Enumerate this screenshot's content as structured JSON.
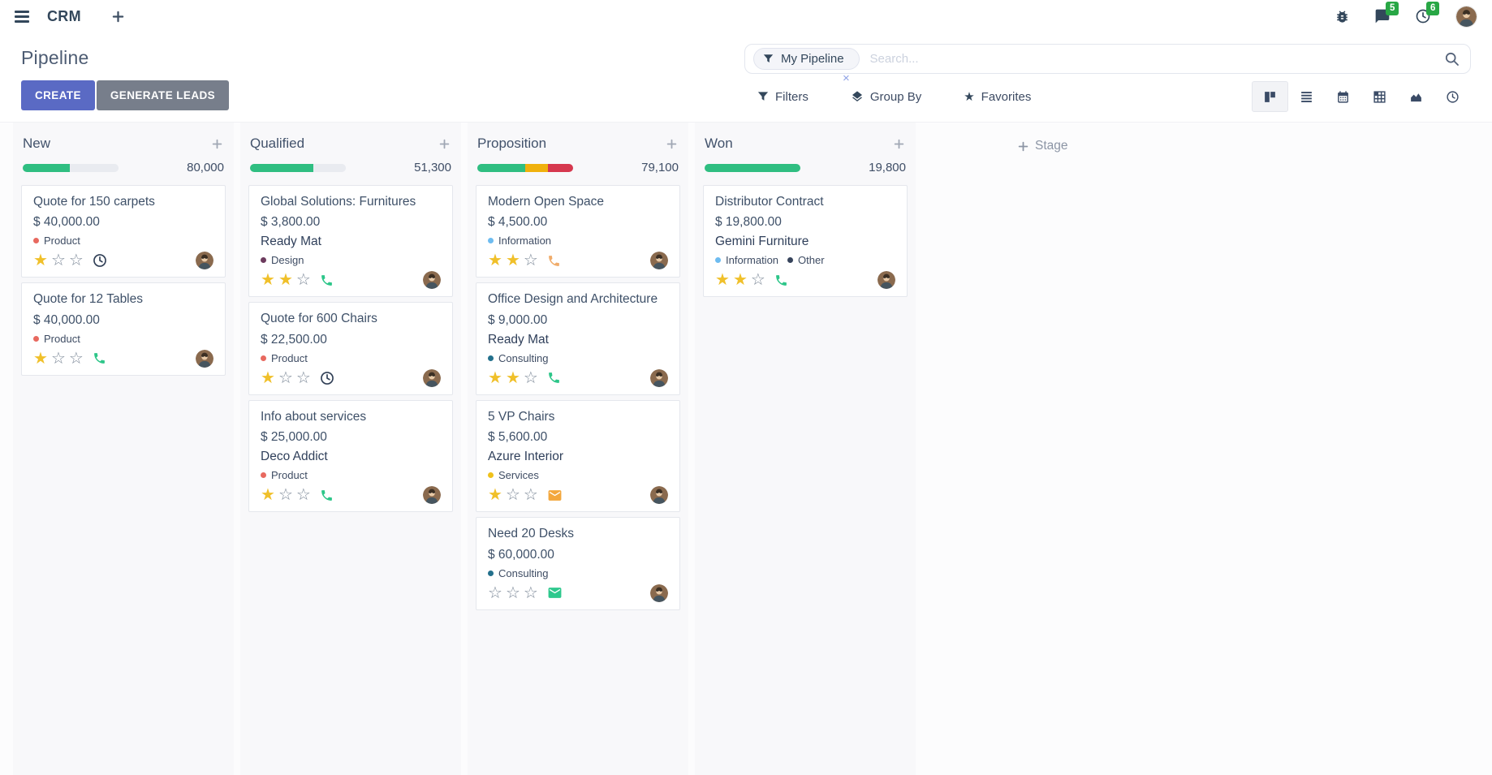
{
  "colors": {
    "accent_create": "#5a6ac4",
    "secondary_button": "#777e8b",
    "badge_green": "#28a745",
    "progress_green": "#2fbe81",
    "progress_yellow": "#f0b10d",
    "progress_red": "#d6384e",
    "progress_muted": "#e9ebf0",
    "star_filled": "#f0c02a"
  },
  "navbar": {
    "app_name": "CRM",
    "messages_badge": "5",
    "activities_badge": "6"
  },
  "control_panel": {
    "title": "Pipeline",
    "buttons": {
      "create": "CREATE",
      "generate_leads": "GENERATE LEADS"
    },
    "search": {
      "facet_label": "My Pipeline",
      "facet_close": "×",
      "placeholder": "Search..."
    },
    "menus": {
      "filters": "Filters",
      "group_by": "Group By",
      "favorites": "Favorites"
    }
  },
  "kanban": {
    "add_stage": "Stage",
    "columns": [
      {
        "name": "New",
        "total": "80,000",
        "progress": [
          {
            "pct": 49,
            "color": "#2fbe81"
          },
          {
            "pct": 51,
            "color": "#e9ebf0"
          }
        ],
        "cards": [
          {
            "title": "Quote for 150 carpets",
            "amount": "$ 40,000.00",
            "partner": "",
            "tags": [
              {
                "label": "Product",
                "color": "#e8695f"
              }
            ],
            "stars": 1,
            "action": {
              "icon": "clock",
              "color": "#2f3e55"
            }
          },
          {
            "title": "Quote for 12 Tables",
            "amount": "$ 40,000.00",
            "partner": "",
            "tags": [
              {
                "label": "Product",
                "color": "#e8695f"
              }
            ],
            "stars": 1,
            "action": {
              "icon": "phone",
              "color": "#2dc689"
            }
          }
        ]
      },
      {
        "name": "Qualified",
        "total": "51,300",
        "progress": [
          {
            "pct": 66,
            "color": "#2fbe81"
          },
          {
            "pct": 34,
            "color": "#e9ebf0"
          }
        ],
        "cards": [
          {
            "title": "Global Solutions: Furnitures",
            "amount": "$ 3,800.00",
            "partner": "Ready Mat",
            "tags": [
              {
                "label": "Design",
                "color": "#6d3b5e"
              }
            ],
            "stars": 2,
            "action": {
              "icon": "phone",
              "color": "#2dc689"
            }
          },
          {
            "title": "Quote for 600 Chairs",
            "amount": "$ 22,500.00",
            "partner": "",
            "tags": [
              {
                "label": "Product",
                "color": "#e8695f"
              }
            ],
            "stars": 1,
            "action": {
              "icon": "clock",
              "color": "#2f3e55"
            }
          },
          {
            "title": "Info about services",
            "amount": "$ 25,000.00",
            "partner": "Deco Addict",
            "tags": [
              {
                "label": "Product",
                "color": "#e8695f"
              }
            ],
            "stars": 1,
            "action": {
              "icon": "phone",
              "color": "#2dc689"
            }
          }
        ]
      },
      {
        "name": "Proposition",
        "total": "79,100",
        "progress": [
          {
            "pct": 50,
            "color": "#2fbe81"
          },
          {
            "pct": 24,
            "color": "#f0b10d"
          },
          {
            "pct": 26,
            "color": "#d6384e"
          }
        ],
        "cards": [
          {
            "title": "Modern Open Space",
            "amount": "$ 4,500.00",
            "partner": "",
            "tags": [
              {
                "label": "Information",
                "color": "#6ebcf0"
              }
            ],
            "stars": 2,
            "action": {
              "icon": "phone",
              "color": "#f0ac6b"
            }
          },
          {
            "title": "Office Design and Architecture",
            "amount": "$ 9,000.00",
            "partner": "Ready Mat",
            "tags": [
              {
                "label": "Consulting",
                "color": "#23708c"
              }
            ],
            "stars": 2,
            "action": {
              "icon": "phone",
              "color": "#2dc689"
            }
          },
          {
            "title": "5 VP Chairs",
            "amount": "$ 5,600.00",
            "partner": "Azure Interior",
            "tags": [
              {
                "label": "Services",
                "color": "#efc11b"
              }
            ],
            "stars": 1,
            "action": {
              "icon": "envelope",
              "color": "#f3a73d"
            }
          },
          {
            "title": "Need 20 Desks",
            "amount": "$ 60,000.00",
            "partner": "",
            "tags": [
              {
                "label": "Consulting",
                "color": "#23708c"
              }
            ],
            "stars": 0,
            "action": {
              "icon": "envelope",
              "color": "#2ec88d"
            }
          }
        ]
      },
      {
        "name": "Won",
        "total": "19,800",
        "progress": [
          {
            "pct": 100,
            "color": "#2fbe81"
          }
        ],
        "cards": [
          {
            "title": "Distributor Contract",
            "amount": "$ 19,800.00",
            "partner": "Gemini Furniture",
            "tags": [
              {
                "label": "Information",
                "color": "#6ebcf0"
              },
              {
                "label": "Other",
                "color": "#37445c"
              }
            ],
            "stars": 2,
            "action": {
              "icon": "phone",
              "color": "#2dc689"
            }
          }
        ]
      }
    ]
  }
}
